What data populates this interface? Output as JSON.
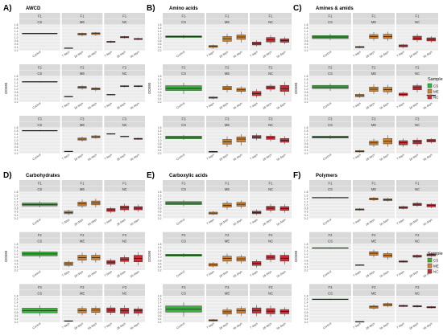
{
  "colors": {
    "CS": "#35b535",
    "ME": "#cd8232",
    "NC": "#c62e35",
    "panel_bg": "#ebebeb",
    "strip_bg": "#d9d9d9",
    "grid": "#ffffff"
  },
  "legend": {
    "title": "Sample",
    "entries": [
      {
        "key": "CS",
        "label": "CS"
      },
      {
        "key": "ME",
        "label": "ME"
      },
      {
        "key": "NC",
        "label": "NC"
      }
    ]
  },
  "common": {
    "ylabel": "OD590",
    "ylim": [
      0.2,
      1.8
    ],
    "yticks": [
      "1.8",
      "1.6",
      "1.4",
      "1.2",
      "1.0",
      "0.8",
      "0.6",
      "0.4",
      "0.2"
    ],
    "rows": [
      "F1",
      "F2",
      "F3"
    ],
    "cols": [
      {
        "sample": "CS",
        "categories": [
          "Control"
        ]
      },
      {
        "sample": "ME",
        "categories": [
          "7 days",
          "28 days",
          "56 days"
        ]
      },
      {
        "sample": "NC",
        "categories": [
          "7 days",
          "28 days",
          "56 days"
        ]
      }
    ]
  },
  "chart_data": [
    {
      "type": "box",
      "letter": "A)",
      "title": "AWCD",
      "grid": [
        [
          [
            [
              1.25,
              1.26,
              1.27,
              1.28,
              1.29
            ]
          ],
          [
            [
              0.34,
              0.35,
              0.36,
              0.37,
              0.38
            ],
            [
              1.1,
              1.17,
              1.24,
              1.28,
              1.32
            ],
            [
              1.12,
              1.2,
              1.27,
              1.31,
              1.36
            ]
          ],
          [
            [
              0.68,
              0.72,
              0.75,
              0.78,
              0.82
            ],
            [
              0.95,
              1.0,
              1.04,
              1.08,
              1.12
            ],
            [
              0.85,
              0.89,
              0.93,
              0.96,
              1.0
            ]
          ]
        ],
        [
          [
            [
              1.42,
              1.44,
              1.46,
              1.48,
              1.5
            ]
          ],
          [
            [
              0.5,
              0.52,
              0.54,
              0.56,
              0.58
            ],
            [
              0.98,
              1.05,
              1.12,
              1.18,
              1.24
            ],
            [
              0.88,
              0.96,
              1.02,
              1.08,
              1.14
            ]
          ],
          [
            [
              0.62,
              0.64,
              0.66,
              0.68,
              0.7
            ],
            [
              1.12,
              1.16,
              1.19,
              1.22,
              1.25
            ],
            [
              1.12,
              1.16,
              1.19,
              1.22,
              1.25
            ]
          ]
        ],
        [
          [
            [
              1.58,
              1.6,
              1.62,
              1.64,
              1.66
            ]
          ],
          [
            [
              0.3,
              0.31,
              0.33,
              0.35,
              0.36
            ],
            [
              0.95,
              1.03,
              1.1,
              1.17,
              1.24
            ],
            [
              1.12,
              1.18,
              1.24,
              1.3,
              1.36
            ]
          ],
          [
            [
              1.38,
              1.4,
              1.42,
              1.44,
              1.46
            ],
            [
              1.22,
              1.24,
              1.26,
              1.28,
              1.3
            ],
            [
              1.05,
              1.08,
              1.12,
              1.15,
              1.18
            ]
          ]
        ]
      ]
    },
    {
      "type": "box",
      "letter": "B)",
      "title": "Amino acids",
      "grid": [
        [
          [
            [
              0.96,
              1.02,
              1.07,
              1.12,
              1.18
            ]
          ],
          [
            [
              0.32,
              0.4,
              0.47,
              0.52,
              0.58
            ],
            [
              0.6,
              0.78,
              0.94,
              1.08,
              1.25
            ],
            [
              0.7,
              0.9,
              1.05,
              1.18,
              1.38
            ]
          ],
          [
            [
              0.46,
              0.55,
              0.64,
              0.74,
              0.84
            ],
            [
              0.6,
              0.74,
              0.88,
              1.02,
              1.18
            ],
            [
              0.6,
              0.72,
              0.82,
              0.94,
              1.06
            ]
          ]
        ],
        [
          [
            [
              0.7,
              0.92,
              1.05,
              1.22,
              1.4
            ]
          ],
          [
            [
              0.38,
              0.44,
              0.48,
              0.52,
              0.56
            ],
            [
              0.8,
              0.96,
              1.06,
              1.18,
              1.3
            ],
            [
              0.72,
              0.86,
              0.96,
              1.06,
              1.18
            ]
          ],
          [
            [
              0.48,
              0.6,
              0.72,
              0.86,
              1.0
            ],
            [
              0.86,
              1.0,
              1.1,
              1.2,
              1.32
            ],
            [
              0.62,
              0.86,
              1.04,
              1.24,
              1.45
            ]
          ]
        ],
        [
          [
            [
              1.05,
              1.12,
              1.2,
              1.28,
              1.36
            ]
          ],
          [
            [
              0.26,
              0.28,
              0.31,
              0.34,
              0.37
            ],
            [
              0.6,
              0.78,
              0.92,
              1.08,
              1.26
            ],
            [
              0.7,
              0.92,
              1.1,
              1.24,
              1.4
            ]
          ],
          [
            [
              1.02,
              1.14,
              1.22,
              1.32,
              1.44
            ],
            [
              0.96,
              1.08,
              1.18,
              1.28,
              1.4
            ],
            [
              0.78,
              0.9,
              1.02,
              1.14,
              1.28
            ]
          ]
        ]
      ]
    },
    {
      "type": "box",
      "letter": "C)",
      "title": "Amines & amids",
      "grid": [
        [
          [
            [
              0.86,
              0.95,
              1.05,
              1.14,
              1.24
            ]
          ],
          [
            [
              0.34,
              0.38,
              0.42,
              0.46,
              0.5
            ],
            [
              0.82,
              0.96,
              1.08,
              1.2,
              1.36
            ],
            [
              0.8,
              0.95,
              1.08,
              1.22,
              1.38
            ]
          ],
          [
            [
              0.36,
              0.43,
              0.5,
              0.56,
              0.62
            ],
            [
              0.74,
              0.86,
              0.98,
              1.1,
              1.24
            ],
            [
              0.7,
              0.8,
              0.9,
              1.0,
              1.1
            ]
          ]
        ],
        [
          [
            [
              0.9,
              1.04,
              1.14,
              1.24,
              1.36
            ]
          ],
          [
            [
              0.46,
              0.54,
              0.6,
              0.68,
              0.76
            ],
            [
              0.7,
              0.86,
              1.0,
              1.14,
              1.3
            ],
            [
              0.68,
              0.84,
              0.98,
              1.12,
              1.28
            ]
          ],
          [
            [
              0.52,
              0.6,
              0.68,
              0.76,
              0.84
            ],
            [
              0.8,
              0.96,
              1.1,
              1.22,
              1.36
            ],
            [
              0.58,
              0.6,
              0.62,
              0.64,
              0.66
            ]
          ]
        ],
        [
          [
            [
              1.1,
              1.16,
              1.22,
              1.28,
              1.34
            ]
          ],
          [
            [
              0.26,
              0.3,
              0.34,
              0.38,
              0.42
            ],
            [
              0.6,
              0.74,
              0.86,
              0.98,
              1.12
            ],
            [
              0.62,
              0.8,
              0.96,
              1.14,
              1.34
            ]
          ],
          [
            [
              0.6,
              0.74,
              0.88,
              1.0,
              1.14
            ],
            [
              0.66,
              0.8,
              0.92,
              1.04,
              1.18
            ],
            [
              0.82,
              0.92,
              1.0,
              1.08,
              1.16
            ]
          ]
        ]
      ]
    },
    {
      "type": "box",
      "letter": "D)",
      "title": "Carbohydrates",
      "grid": [
        [
          [
            [
              0.88,
              0.96,
              1.05,
              1.14,
              1.24
            ]
          ],
          [
            [
              0.4,
              0.48,
              0.56,
              0.64,
              0.72
            ],
            [
              0.84,
              0.96,
              1.08,
              1.2,
              1.34
            ],
            [
              0.88,
              1.02,
              1.14,
              1.26,
              1.4
            ]
          ],
          [
            [
              0.52,
              0.62,
              0.72,
              0.8,
              0.9
            ],
            [
              0.6,
              0.72,
              0.84,
              0.96,
              1.1
            ],
            [
              0.6,
              0.72,
              0.82,
              0.92,
              1.04
            ]
          ]
        ],
        [
          [
            [
              0.96,
              1.08,
              1.2,
              1.32,
              1.42
            ]
          ],
          [
            [
              0.4,
              0.5,
              0.6,
              0.7,
              0.8
            ],
            [
              0.64,
              0.82,
              0.98,
              1.12,
              1.28
            ],
            [
              0.68,
              0.84,
              0.98,
              1.12,
              1.26
            ]
          ],
          [
            [
              0.44,
              0.58,
              0.7,
              0.8,
              0.92
            ],
            [
              0.6,
              0.74,
              0.86,
              0.98,
              1.12
            ],
            [
              0.5,
              0.72,
              0.92,
              1.12,
              1.32
            ]
          ]
        ],
        [
          [
            [
              0.6,
              0.78,
              0.92,
              1.06,
              1.24
            ]
          ],
          [
            [
              0.24,
              0.26,
              0.28,
              0.3,
              0.32
            ],
            [
              0.62,
              0.78,
              0.92,
              1.04,
              1.18
            ],
            [
              0.64,
              0.8,
              0.94,
              1.06,
              1.2
            ]
          ],
          [
            [
              0.64,
              0.8,
              0.94,
              1.08,
              1.24
            ],
            [
              0.56,
              0.74,
              0.9,
              1.06,
              1.24
            ],
            [
              0.6,
              0.76,
              0.9,
              1.02,
              1.16
            ]
          ]
        ]
      ]
    },
    {
      "type": "box",
      "letter": "E)",
      "title": "Carboxylic acids",
      "grid": [
        [
          [
            [
              0.94,
              1.04,
              1.12,
              1.22,
              1.32
            ]
          ],
          [
            [
              0.4,
              0.46,
              0.52,
              0.58,
              0.64
            ],
            [
              0.74,
              0.88,
              1.0,
              1.12,
              1.26
            ],
            [
              0.8,
              0.94,
              1.06,
              1.18,
              1.3
            ]
          ],
          [
            [
              0.4,
              0.48,
              0.56,
              0.64,
              0.74
            ],
            [
              0.56,
              0.7,
              0.82,
              0.94,
              1.08
            ],
            [
              0.54,
              0.68,
              0.8,
              0.92,
              1.06
            ]
          ]
        ],
        [
          [
            [
              1.0,
              1.06,
              1.12,
              1.18,
              1.24
            ]
          ],
          [
            [
              0.38,
              0.46,
              0.54,
              0.62,
              0.7
            ],
            [
              0.6,
              0.76,
              0.92,
              1.06,
              1.22
            ],
            [
              0.62,
              0.76,
              0.9,
              1.02,
              1.16
            ]
          ],
          [
            [
              0.36,
              0.5,
              0.62,
              0.74,
              0.86
            ],
            [
              0.7,
              0.86,
              1.0,
              1.12,
              1.26
            ],
            [
              0.56,
              0.76,
              0.94,
              1.12,
              1.3
            ]
          ]
        ],
        [
          [
            [
              0.56,
              0.82,
              1.0,
              1.2,
              1.42
            ]
          ],
          [
            [
              0.24,
              0.28,
              0.32,
              0.36,
              0.4
            ],
            [
              0.56,
              0.7,
              0.84,
              0.96,
              1.1
            ],
            [
              0.6,
              0.76,
              0.9,
              1.04,
              1.18
            ]
          ],
          [
            [
              0.58,
              0.76,
              0.92,
              1.08,
              1.26
            ],
            [
              0.54,
              0.72,
              0.88,
              1.04,
              1.22
            ],
            [
              0.58,
              0.72,
              0.86,
              0.98,
              1.12
            ]
          ]
        ]
      ]
    },
    {
      "type": "box",
      "letter": "F)",
      "title": "Polymers",
      "grid": [
        [
          [
            [
              1.42,
              1.44,
              1.46,
              1.48,
              1.5
            ]
          ],
          [
            [
              0.66,
              0.7,
              0.74,
              0.78,
              0.82
            ],
            [
              1.26,
              1.32,
              1.38,
              1.44,
              1.5
            ],
            [
              1.22,
              1.28,
              1.34,
              1.4,
              1.46
            ]
          ],
          [
            [
              0.74,
              0.8,
              0.86,
              0.92,
              0.98
            ],
            [
              0.9,
              0.98,
              1.06,
              1.12,
              1.2
            ],
            [
              0.82,
              0.9,
              0.98,
              1.06,
              1.14
            ]
          ]
        ],
        [
          [
            [
              1.52,
              1.54,
              1.56,
              1.58,
              1.6
            ]
          ],
          [
            [
              0.48,
              0.5,
              0.52,
              0.54,
              0.56
            ],
            [
              0.98,
              1.12,
              1.24,
              1.34,
              1.46
            ],
            [
              0.86,
              1.0,
              1.12,
              1.22,
              1.34
            ]
          ],
          [
            [
              0.66,
              0.7,
              0.74,
              0.78,
              0.82
            ],
            [
              0.94,
              1.0,
              1.06,
              1.12,
              1.18
            ],
            [
              1.02,
              1.08,
              1.14,
              1.2,
              1.26
            ]
          ]
        ],
        [
          [
            [
              1.56,
              1.58,
              1.6,
              1.62,
              1.64
            ]
          ],
          [
            [
              0.22,
              0.23,
              0.24,
              0.25,
              0.26
            ],
            [
              0.98,
              1.06,
              1.14,
              1.2,
              1.28
            ],
            [
              1.12,
              1.2,
              1.28,
              1.34,
              1.42
            ]
          ],
          [
            [
              1.12,
              1.16,
              1.2,
              1.24,
              1.28
            ],
            [
              1.1,
              1.14,
              1.18,
              1.22,
              1.26
            ],
            [
              1.04,
              1.08,
              1.12,
              1.16,
              1.2
            ]
          ]
        ]
      ]
    }
  ]
}
